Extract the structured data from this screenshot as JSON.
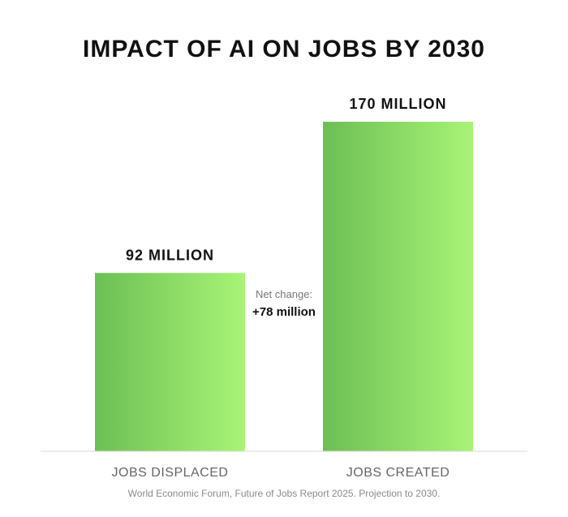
{
  "chart_data": {
    "type": "bar",
    "title": "IMPACT OF AI ON JOBS BY 2030",
    "categories": [
      "JOBS DISPLACED",
      "JOBS CREATED"
    ],
    "values": [
      92,
      170
    ],
    "value_labels": [
      "92 MILLION",
      "170 MILLION"
    ],
    "unit": "million jobs",
    "ylim": [
      0,
      170
    ],
    "grid": false,
    "legend": "none",
    "annotation": {
      "caption": "Net change:",
      "value": "+78 million"
    },
    "source": "World Economic Forum, Future of Jobs Report 2025. Projection to 2030.",
    "colors": {
      "bar_gradient_start": "#6cbf54",
      "bar_gradient_end": "#a9f477",
      "baseline": "#d9d9d9"
    }
  }
}
